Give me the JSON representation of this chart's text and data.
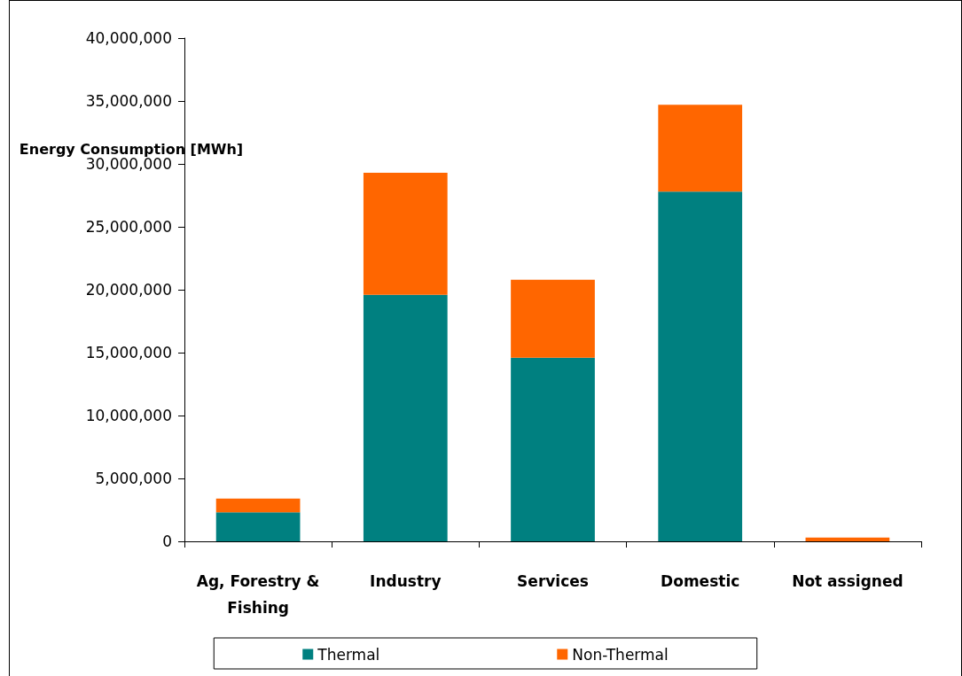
{
  "chart_data": {
    "type": "bar",
    "stacked": true,
    "ylabel": "Energy Consumption [MWh]",
    "categories": [
      "Ag, Forestry &\nFishing",
      "Industry",
      "Services",
      "Domestic",
      "Not assigned"
    ],
    "series": [
      {
        "name": "Thermal",
        "color": "#008080",
        "values": [
          2300000,
          19600000,
          14600000,
          27800000,
          0
        ]
      },
      {
        "name": "Non-Thermal",
        "color": "#ff6600",
        "values": [
          1100000,
          9700000,
          6200000,
          6900000,
          300000
        ]
      }
    ],
    "ylim": [
      0,
      40000000
    ],
    "yticks": [
      0,
      {
        "value": 5000000,
        "label": "5,000,000"
      },
      {
        "value": 10000000,
        "label": "10,000,000"
      },
      {
        "value": 15000000,
        "label": "15,000,000"
      },
      {
        "value": 20000000,
        "label": "20,000,000"
      },
      {
        "value": 25000000,
        "label": "25,000,000"
      },
      {
        "value": 30000000,
        "label": "30,000,000"
      },
      {
        "value": 35000000,
        "label": "35,000,000"
      },
      {
        "value": 40000000,
        "label": "40,000,000"
      }
    ],
    "grid": false,
    "legend": "bottom"
  }
}
